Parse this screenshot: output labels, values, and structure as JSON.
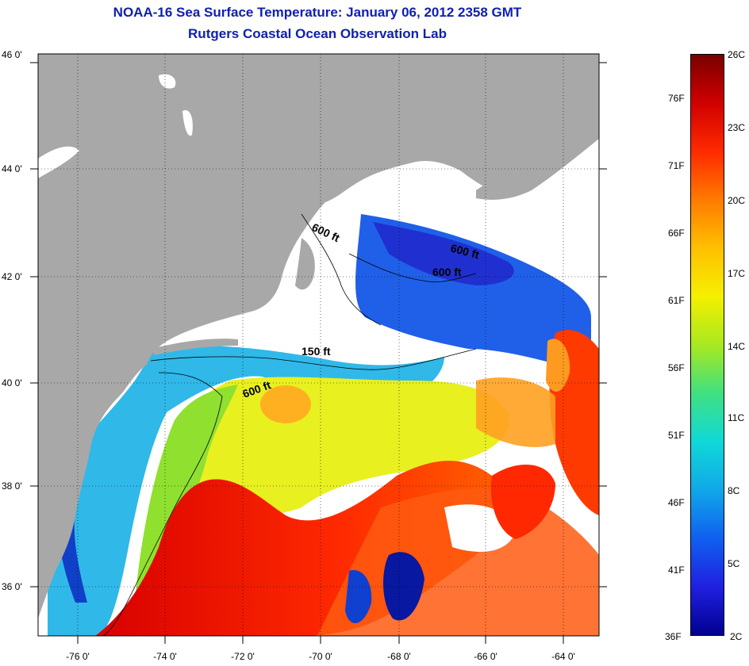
{
  "title": "NOAA-16 Sea Surface Temperature:  January 06, 2012 2358 GMT",
  "subtitle": "Rutgers Coastal Ocean Observation Lab",
  "map": {
    "lat_ticks": [
      "46 0'",
      "44 0'",
      "42 0'",
      "40 0'",
      "38 0'",
      "36 0'"
    ],
    "lon_ticks": [
      "-76 0'",
      "-74 0'",
      "-72 0'",
      "-70 0'",
      "-68 0'",
      "-66 0'",
      "-64 0'"
    ],
    "lat_range": [
      35,
      46
    ],
    "lon_range": [
      -77,
      -63
    ],
    "contour_labels": [
      "600 ft",
      "600 ft",
      "600 ft",
      "150 ft",
      "600 ft"
    ],
    "colors": {
      "land": "#a8a8a8",
      "cloud": "#ffffff",
      "grid": "#000000"
    }
  },
  "colorbar": {
    "celsius_labels": [
      "26C",
      "23C",
      "20C",
      "17C",
      "14C",
      "11C",
      "8C",
      "5C",
      "2C"
    ],
    "fahrenheit_labels": [
      "76F",
      "71F",
      "66F",
      "61F",
      "56F",
      "51F",
      "46F",
      "41F",
      "36F"
    ],
    "range_c": [
      2,
      26
    ],
    "palette": [
      "#7a0000",
      "#d00000",
      "#ff2a00",
      "#ff7a00",
      "#ffc000",
      "#f4f000",
      "#a8e820",
      "#40e080",
      "#10d8d8",
      "#10a8e8",
      "#1060f0",
      "#2020e0",
      "#000090"
    ]
  }
}
